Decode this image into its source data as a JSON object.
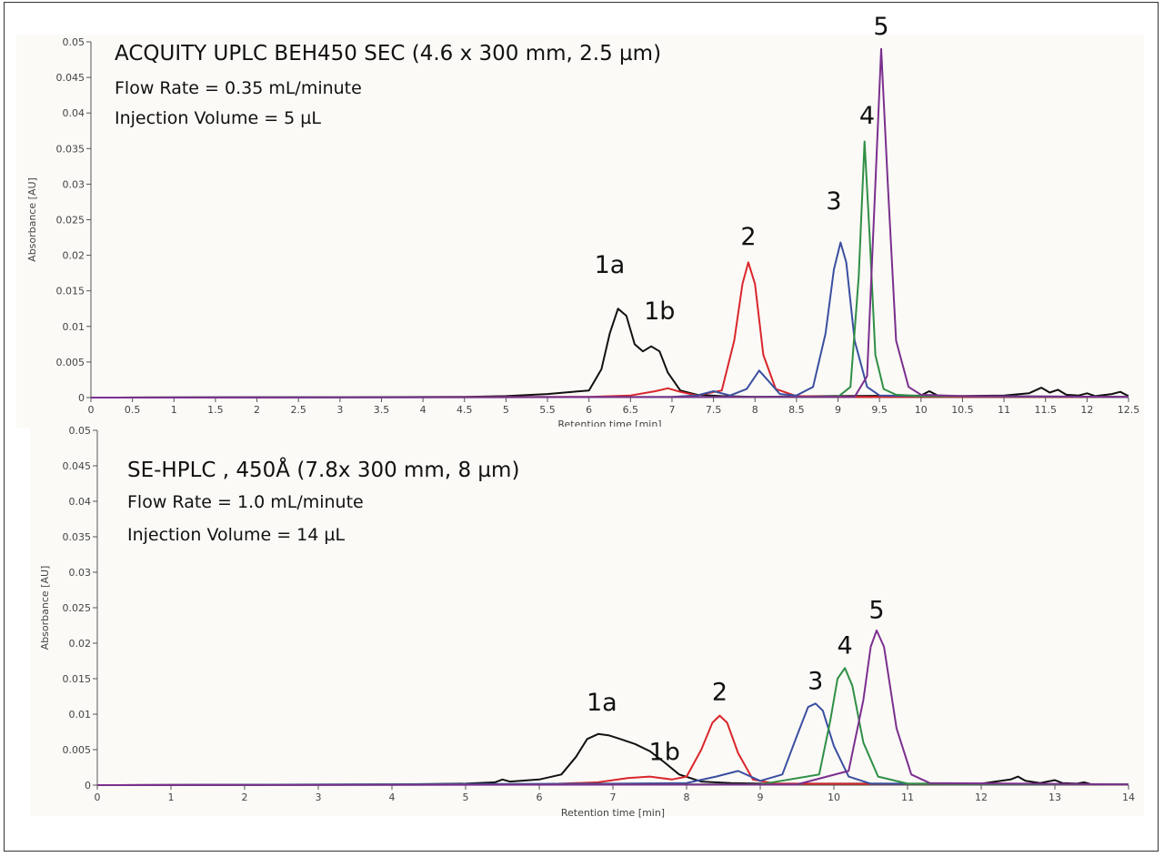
{
  "chart_data": [
    {
      "type": "line",
      "title": "ACQUITY UPLC BEH450 SEC (4.6 x 300 mm, 2.5 µm)",
      "subtitles": [
        "Flow Rate = 0.35 mL/minute",
        "Injection Volume = 5 µL"
      ],
      "xlabel": "Retention time [min]",
      "ylabel": "Absorbance [AU]",
      "xlim": [
        0,
        12.5
      ],
      "ylim": [
        0,
        0.05
      ],
      "xticks": [
        "0",
        "0.5",
        "1",
        "1.5",
        "2",
        "2.5",
        "3",
        "3.5",
        "4",
        "4.5",
        "5",
        "5.5",
        "6",
        "6.5",
        "7",
        "7.5",
        "8",
        "8.5",
        "9",
        "9.5",
        "10",
        "10.5",
        "11",
        "11.5",
        "12",
        "12.5"
      ],
      "yticks": [
        "0",
        "0.005",
        "0.01",
        "0.015",
        "0.02",
        "0.025",
        "0.03",
        "0.035",
        "0.04",
        "0.045",
        "0.05"
      ],
      "grid": false,
      "series": [
        {
          "color": "#111111",
          "x": [
            0,
            4.5,
            5.0,
            5.5,
            5.8,
            6.0,
            6.15,
            6.25,
            6.35,
            6.45,
            6.55,
            6.65,
            6.75,
            6.85,
            6.95,
            7.1,
            7.3,
            7.6,
            8.0,
            9.0,
            10.0,
            10.1,
            10.2,
            10.4,
            11.0,
            11.3,
            11.45,
            11.55,
            11.65,
            11.75,
            11.9,
            12.0,
            12.1,
            12.3,
            12.4,
            12.5
          ],
          "y": [
            0,
            0.0001,
            0.0002,
            0.0005,
            0.0008,
            0.001,
            0.004,
            0.009,
            0.0125,
            0.0115,
            0.0075,
            0.0065,
            0.0072,
            0.0065,
            0.0035,
            0.001,
            0.0004,
            0.0002,
            0.0001,
            0.0002,
            0.0003,
            0.0009,
            0.0003,
            0.0002,
            0.0003,
            0.0006,
            0.0014,
            0.0007,
            0.0011,
            0.0004,
            0.0003,
            0.0006,
            0.0002,
            0.0005,
            0.0008,
            0.0002
          ]
        },
        {
          "color": "#d9262b",
          "x": [
            0,
            6.0,
            6.5,
            6.8,
            6.95,
            7.1,
            7.3,
            7.6,
            7.75,
            7.85,
            7.92,
            8.0,
            8.1,
            8.25,
            8.5,
            9.0,
            12.5
          ],
          "y": [
            0,
            0.0001,
            0.0003,
            0.0009,
            0.0013,
            0.0008,
            0.0003,
            0.001,
            0.008,
            0.016,
            0.019,
            0.016,
            0.006,
            0.0012,
            0.0002,
            0.0001,
            0.0001
          ]
        },
        {
          "color": "#3b4fa0",
          "x": [
            0,
            7.0,
            7.3,
            7.5,
            7.7,
            7.9,
            8.05,
            8.15,
            8.3,
            8.5,
            8.7,
            8.85,
            8.95,
            9.03,
            9.1,
            9.2,
            9.35,
            9.5,
            10.0,
            12.5
          ],
          "y": [
            0,
            0.0001,
            0.0003,
            0.0009,
            0.0003,
            0.0012,
            0.0038,
            0.0025,
            0.0005,
            0.0003,
            0.0015,
            0.009,
            0.018,
            0.0218,
            0.019,
            0.008,
            0.0015,
            0.0003,
            0.0002,
            0.0001
          ]
        },
        {
          "color": "#2f8f45",
          "x": [
            0,
            9.0,
            9.15,
            9.25,
            9.32,
            9.38,
            9.45,
            9.55,
            9.7,
            10.0,
            12.5
          ],
          "y": [
            0,
            0.0001,
            0.0015,
            0.017,
            0.036,
            0.023,
            0.006,
            0.0012,
            0.0004,
            0.0002,
            0.0001
          ]
        },
        {
          "color": "#7b2f8e",
          "x": [
            0,
            9.2,
            9.35,
            9.45,
            9.52,
            9.6,
            9.7,
            9.85,
            10.0,
            10.5,
            12.5
          ],
          "y": [
            0,
            0.0001,
            0.003,
            0.03,
            0.049,
            0.03,
            0.008,
            0.0015,
            0.0004,
            0.0002,
            0.0001
          ]
        }
      ],
      "annotations": [
        {
          "text": "1a",
          "x": 6.25,
          "y": 0.0175
        },
        {
          "text": "1b",
          "x": 6.85,
          "y": 0.011
        },
        {
          "text": "2",
          "x": 7.92,
          "y": 0.0215
        },
        {
          "text": "3",
          "x": 8.95,
          "y": 0.0265
        },
        {
          "text": "4",
          "x": 9.35,
          "y": 0.0385
        },
        {
          "text": "5",
          "x": 9.52,
          "y": 0.051
        }
      ]
    },
    {
      "type": "line",
      "title": "SE-HPLC , 450Å (7.8x 300 mm, 8 µm)",
      "subtitles": [
        "Flow Rate = 1.0 mL/minute",
        "Injection Volume = 14 µL"
      ],
      "xlabel": "Retention time [min]",
      "ylabel": "Absorbance [AU]",
      "xlim": [
        0,
        14
      ],
      "ylim": [
        0,
        0.05
      ],
      "xticks": [
        "0",
        "1",
        "2",
        "3",
        "4",
        "5",
        "6",
        "7",
        "8",
        "9",
        "10",
        "11",
        "12",
        "13",
        "14"
      ],
      "yticks": [
        "0",
        "0.005",
        "0.01",
        "0.015",
        "0.02",
        "0.025",
        "0.03",
        "0.035",
        "0.04",
        "0.045",
        "0.05"
      ],
      "grid": false,
      "series": [
        {
          "color": "#111111",
          "x": [
            0,
            4.0,
            5.0,
            5.4,
            5.5,
            5.6,
            6.0,
            6.3,
            6.5,
            6.65,
            6.8,
            6.95,
            7.1,
            7.3,
            7.5,
            7.7,
            7.9,
            8.2,
            8.6,
            9.0,
            11.0,
            12.0,
            12.4,
            12.5,
            12.6,
            12.8,
            13.0,
            13.1,
            13.3,
            13.4,
            13.5,
            14.0
          ],
          "y": [
            0,
            0.0001,
            0.0002,
            0.0004,
            0.0008,
            0.0005,
            0.0008,
            0.0015,
            0.004,
            0.0065,
            0.0072,
            0.007,
            0.0065,
            0.0058,
            0.0048,
            0.0032,
            0.0015,
            0.0005,
            0.0003,
            0.0002,
            0.0002,
            0.0002,
            0.0008,
            0.0012,
            0.0006,
            0.0003,
            0.0007,
            0.0003,
            0.0002,
            0.0004,
            0.0001,
            0.0001
          ]
        },
        {
          "color": "#d9262b",
          "x": [
            0,
            6.0,
            6.8,
            7.2,
            7.5,
            7.8,
            8.0,
            8.2,
            8.35,
            8.45,
            8.55,
            8.7,
            8.9,
            9.2,
            14.0
          ],
          "y": [
            0,
            0.0001,
            0.0004,
            0.001,
            0.0012,
            0.0008,
            0.0012,
            0.005,
            0.0088,
            0.0098,
            0.0088,
            0.0045,
            0.0008,
            0.0002,
            0.0001
          ]
        },
        {
          "color": "#3b4fa0",
          "x": [
            0,
            7.0,
            8.0,
            8.4,
            8.7,
            9.0,
            9.3,
            9.5,
            9.65,
            9.75,
            9.85,
            10.0,
            10.2,
            10.5,
            14.0
          ],
          "y": [
            0,
            0.0002,
            0.0003,
            0.0012,
            0.002,
            0.0006,
            0.0015,
            0.007,
            0.011,
            0.0115,
            0.0105,
            0.0055,
            0.0012,
            0.0002,
            0.0001
          ]
        },
        {
          "color": "#2f8f45",
          "x": [
            0,
            9.0,
            9.8,
            9.95,
            10.05,
            10.15,
            10.25,
            10.4,
            10.6,
            11.0,
            14.0
          ],
          "y": [
            0,
            0.0001,
            0.0015,
            0.009,
            0.015,
            0.0165,
            0.014,
            0.006,
            0.0012,
            0.0002,
            0.0001
          ]
        },
        {
          "color": "#7b2f8e",
          "x": [
            0,
            9.5,
            10.2,
            10.4,
            10.5,
            10.58,
            10.68,
            10.85,
            11.05,
            11.3,
            14.0
          ],
          "y": [
            0,
            0.0001,
            0.002,
            0.012,
            0.0195,
            0.0218,
            0.0195,
            0.008,
            0.0015,
            0.0003,
            0.0001
          ]
        }
      ],
      "annotations": [
        {
          "text": "1a",
          "x": 6.85,
          "y": 0.0105
        },
        {
          "text": "1b",
          "x": 7.7,
          "y": 0.0035
        },
        {
          "text": "2",
          "x": 8.45,
          "y": 0.012
        },
        {
          "text": "3",
          "x": 9.75,
          "y": 0.0135
        },
        {
          "text": "4",
          "x": 10.15,
          "y": 0.0185
        },
        {
          "text": "5",
          "x": 10.58,
          "y": 0.0235
        }
      ]
    }
  ]
}
